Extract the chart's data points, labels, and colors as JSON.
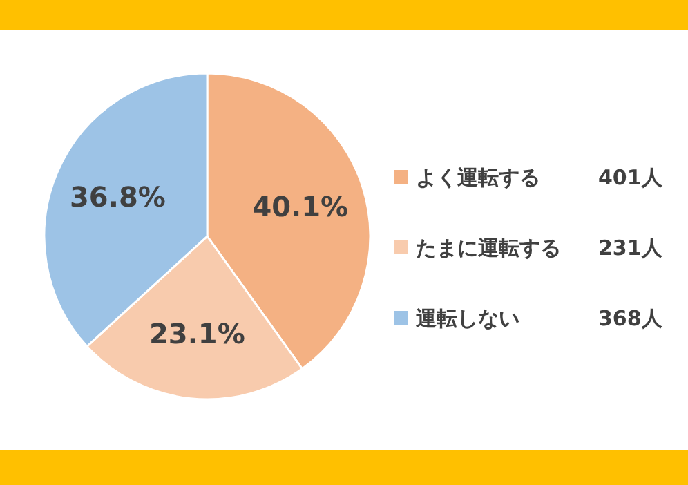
{
  "chart_data": {
    "type": "pie",
    "categories": [
      "よく運転する",
      "たまに運転する",
      "運転しない"
    ],
    "values": [
      40.1,
      23.1,
      36.8
    ],
    "colors": [
      "#f4b183",
      "#f8cbad",
      "#9dc3e6"
    ],
    "value_labels": [
      "40.1%",
      "23.1%",
      "36.8%"
    ],
    "annotations": [
      "401人",
      "231人",
      "368人"
    ],
    "legend": "right"
  }
}
